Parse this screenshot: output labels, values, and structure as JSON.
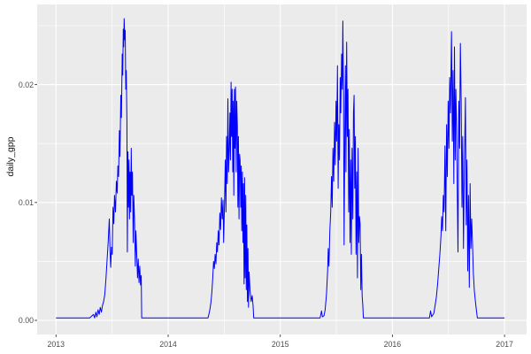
{
  "figure": {
    "kind": "ggplot-line-chart",
    "panel_bg": "#EBEBEB",
    "grid_color": "#FFFFFF",
    "tick_color": "#333333",
    "tick_label_color": "#4D4D4D",
    "axis_title_color": "#111111",
    "line_color": "#0000FF"
  },
  "chart_data": {
    "type": "line",
    "title": "",
    "xlabel": "",
    "ylabel": "daily_gpp",
    "legend": "none",
    "grid": "on",
    "x_domain": [
      2013,
      2017
    ],
    "ylim": [
      0,
      0.0268
    ],
    "x_major": [
      2013,
      2014,
      2015,
      2016,
      2017
    ],
    "x_tick_labels": [
      "2013",
      "2014",
      "2015",
      "2016",
      "2017"
    ],
    "x_minor": [
      2013.5,
      2014.5,
      2015.5,
      2016.5
    ],
    "y_major": [
      0.0,
      0.01,
      0.02
    ],
    "y_tick_labels": [
      "0.00",
      "0.01",
      "0.02"
    ],
    "y_minor": [
      0.005,
      0.015,
      0.025
    ],
    "series": [
      {
        "name": "daily_gpp",
        "color": "#0000FF",
        "points": [
          [
            2013.0,
            0.0002
          ],
          [
            2013.15,
            0.0002
          ],
          [
            2013.3,
            0.0002
          ],
          [
            2013.335,
            0.0005
          ],
          [
            2013.345,
            0.0002
          ],
          [
            2013.355,
            0.0007
          ],
          [
            2013.365,
            0.0003
          ],
          [
            2013.375,
            0.0009
          ],
          [
            2013.385,
            0.0005
          ],
          [
            2013.395,
            0.0011
          ],
          [
            2013.405,
            0.0007
          ],
          [
            2013.415,
            0.0013
          ],
          [
            2013.425,
            0.0016
          ],
          [
            2013.435,
            0.0022
          ],
          [
            2013.445,
            0.0035
          ],
          [
            2013.455,
            0.005
          ],
          [
            2013.465,
            0.0066
          ],
          [
            2013.475,
            0.0086
          ],
          [
            2013.482,
            0.0058
          ],
          [
            2013.488,
            0.0045
          ],
          [
            2013.495,
            0.0062
          ],
          [
            2013.501,
            0.0056
          ],
          [
            2013.508,
            0.0096
          ],
          [
            2013.515,
            0.0082
          ],
          [
            2013.522,
            0.0106
          ],
          [
            2013.53,
            0.0092
          ],
          [
            2013.538,
            0.0118
          ],
          [
            2013.545,
            0.0108
          ],
          [
            2013.552,
            0.0131
          ],
          [
            2013.558,
            0.0122
          ],
          [
            2013.565,
            0.0161
          ],
          [
            2013.571,
            0.0139
          ],
          [
            2013.578,
            0.0191
          ],
          [
            2013.583,
            0.0172
          ],
          [
            2013.59,
            0.0226
          ],
          [
            2013.595,
            0.0208
          ],
          [
            2013.6,
            0.0247
          ],
          [
            2013.604,
            0.0232
          ],
          [
            2013.608,
            0.0256
          ],
          [
            2013.613,
            0.0238
          ],
          [
            2013.617,
            0.0246
          ],
          [
            2013.622,
            0.0196
          ],
          [
            2013.627,
            0.0212
          ],
          [
            2013.632,
            0.0168
          ],
          [
            2013.636,
            0.0058
          ],
          [
            2013.641,
            0.0143
          ],
          [
            2013.646,
            0.0096
          ],
          [
            2013.651,
            0.0136
          ],
          [
            2013.656,
            0.0086
          ],
          [
            2013.661,
            0.0126
          ],
          [
            2013.666,
            0.0092
          ],
          [
            2013.671,
            0.0146
          ],
          [
            2013.676,
            0.0106
          ],
          [
            2013.682,
            0.0126
          ],
          [
            2013.688,
            0.0066
          ],
          [
            2013.694,
            0.0106
          ],
          [
            2013.7,
            0.0086
          ],
          [
            2013.707,
            0.0046
          ],
          [
            2013.713,
            0.0076
          ],
          [
            2013.72,
            0.0056
          ],
          [
            2013.727,
            0.0036
          ],
          [
            2013.733,
            0.0052
          ],
          [
            2013.74,
            0.0032
          ],
          [
            2013.747,
            0.0046
          ],
          [
            2013.754,
            0.003
          ],
          [
            2013.76,
            0.0038
          ],
          [
            2013.764,
            0.0002
          ],
          [
            2013.85,
            0.0002
          ],
          [
            2014.0,
            0.0002
          ],
          [
            2014.2,
            0.0002
          ],
          [
            2014.355,
            0.0002
          ],
          [
            2014.363,
            0.0005
          ],
          [
            2014.372,
            0.0009
          ],
          [
            2014.381,
            0.0015
          ],
          [
            2014.39,
            0.0024
          ],
          [
            2014.398,
            0.0036
          ],
          [
            2014.405,
            0.005
          ],
          [
            2014.412,
            0.0044
          ],
          [
            2014.419,
            0.0056
          ],
          [
            2014.426,
            0.0048
          ],
          [
            2014.433,
            0.0066
          ],
          [
            2014.44,
            0.0058
          ],
          [
            2014.447,
            0.0076
          ],
          [
            2014.454,
            0.0064
          ],
          [
            2014.461,
            0.0091
          ],
          [
            2014.468,
            0.0077
          ],
          [
            2014.475,
            0.0104
          ],
          [
            2014.482,
            0.0086
          ],
          [
            2014.489,
            0.0102
          ],
          [
            2014.495,
            0.0066
          ],
          [
            2014.502,
            0.0096
          ],
          [
            2014.509,
            0.0136
          ],
          [
            2014.515,
            0.0092
          ],
          [
            2014.521,
            0.0156
          ],
          [
            2014.527,
            0.0116
          ],
          [
            2014.533,
            0.0188
          ],
          [
            2014.539,
            0.0126
          ],
          [
            2014.545,
            0.0146
          ],
          [
            2014.551,
            0.0176
          ],
          [
            2014.556,
            0.0136
          ],
          [
            2014.561,
            0.0202
          ],
          [
            2014.566,
            0.0156
          ],
          [
            2014.571,
            0.0196
          ],
          [
            2014.576,
            0.0126
          ],
          [
            2014.581,
            0.0186
          ],
          [
            2014.586,
            0.0106
          ],
          [
            2014.591,
            0.0196
          ],
          [
            2014.596,
            0.0146
          ],
          [
            2014.601,
            0.0198
          ],
          [
            2014.607,
            0.0126
          ],
          [
            2014.612,
            0.0186
          ],
          [
            2014.617,
            0.0166
          ],
          [
            2014.622,
            0.0096
          ],
          [
            2014.627,
            0.0156
          ],
          [
            2014.632,
            0.0086
          ],
          [
            2014.637,
            0.0141
          ],
          [
            2014.642,
            0.0136
          ],
          [
            2014.647,
            0.0096
          ],
          [
            2014.652,
            0.0131
          ],
          [
            2014.657,
            0.0076
          ],
          [
            2014.662,
            0.0126
          ],
          [
            2014.667,
            0.0066
          ],
          [
            2014.672,
            0.0116
          ],
          [
            2014.677,
            0.0031
          ],
          [
            2014.682,
            0.0121
          ],
          [
            2014.687,
            0.0036
          ],
          [
            2014.692,
            0.0106
          ],
          [
            2014.697,
            0.0026
          ],
          [
            2014.702,
            0.0081
          ],
          [
            2014.707,
            0.0016
          ],
          [
            2014.712,
            0.0061
          ],
          [
            2014.717,
            0.0011
          ],
          [
            2014.722,
            0.0041
          ],
          [
            2014.73,
            0.0026
          ],
          [
            2014.74,
            0.0016
          ],
          [
            2014.75,
            0.0021
          ],
          [
            2014.758,
            0.0012
          ],
          [
            2014.763,
            0.0002
          ],
          [
            2014.85,
            0.0002
          ],
          [
            2015.0,
            0.0002
          ],
          [
            2015.2,
            0.0002
          ],
          [
            2015.355,
            0.0002
          ],
          [
            2015.368,
            0.0008
          ],
          [
            2015.376,
            0.0003
          ],
          [
            2015.39,
            0.0004
          ],
          [
            2015.4,
            0.0009
          ],
          [
            2015.412,
            0.0022
          ],
          [
            2015.422,
            0.0042
          ],
          [
            2015.428,
            0.0061
          ],
          [
            2015.434,
            0.0046
          ],
          [
            2015.442,
            0.0076
          ],
          [
            2015.45,
            0.0092
          ],
          [
            2015.457,
            0.0122
          ],
          [
            2015.463,
            0.0096
          ],
          [
            2015.47,
            0.0146
          ],
          [
            2015.477,
            0.0118
          ],
          [
            2015.484,
            0.0168
          ],
          [
            2015.49,
            0.0132
          ],
          [
            2015.497,
            0.0186
          ],
          [
            2015.503,
            0.0152
          ],
          [
            2015.51,
            0.0216
          ],
          [
            2015.516,
            0.0112
          ],
          [
            2015.522,
            0.0166
          ],
          [
            2015.528,
            0.0136
          ],
          [
            2015.534,
            0.0206
          ],
          [
            2015.54,
            0.0176
          ],
          [
            2015.547,
            0.0226
          ],
          [
            2015.553,
            0.0196
          ],
          [
            2015.558,
            0.0254
          ],
          [
            2015.564,
            0.0186
          ],
          [
            2015.569,
            0.0064
          ],
          [
            2015.575,
            0.0156
          ],
          [
            2015.581,
            0.0216
          ],
          [
            2015.586,
            0.0126
          ],
          [
            2015.592,
            0.0236
          ],
          [
            2015.598,
            0.0156
          ],
          [
            2015.604,
            0.0196
          ],
          [
            2015.61,
            0.0092
          ],
          [
            2015.616,
            0.0162
          ],
          [
            2015.622,
            0.0066
          ],
          [
            2015.628,
            0.0136
          ],
          [
            2015.634,
            0.0056
          ],
          [
            2015.64,
            0.0146
          ],
          [
            2015.647,
            0.0086
          ],
          [
            2015.653,
            0.0176
          ],
          [
            2015.658,
            0.0191
          ],
          [
            2015.664,
            0.0112
          ],
          [
            2015.67,
            0.0156
          ],
          [
            2015.676,
            0.0056
          ],
          [
            2015.682,
            0.0126
          ],
          [
            2015.688,
            0.0036
          ],
          [
            2015.694,
            0.0146
          ],
          [
            2015.7,
            0.0066
          ],
          [
            2015.706,
            0.0088
          ],
          [
            2015.712,
            0.0082
          ],
          [
            2015.718,
            0.0026
          ],
          [
            2015.724,
            0.0056
          ],
          [
            2015.73,
            0.0021
          ],
          [
            2015.736,
            0.0012
          ],
          [
            2015.741,
            0.0002
          ],
          [
            2015.85,
            0.0002
          ],
          [
            2016.0,
            0.0002
          ],
          [
            2016.2,
            0.0002
          ],
          [
            2016.33,
            0.0002
          ],
          [
            2016.34,
            0.0008
          ],
          [
            2016.35,
            0.0003
          ],
          [
            2016.369,
            0.0006
          ],
          [
            2016.38,
            0.0012
          ],
          [
            2016.392,
            0.002
          ],
          [
            2016.404,
            0.0032
          ],
          [
            2016.415,
            0.0046
          ],
          [
            2016.425,
            0.0058
          ],
          [
            2016.433,
            0.0072
          ],
          [
            2016.44,
            0.0088
          ],
          [
            2016.447,
            0.0076
          ],
          [
            2016.454,
            0.0106
          ],
          [
            2016.461,
            0.0092
          ],
          [
            2016.469,
            0.0148
          ],
          [
            2016.476,
            0.0076
          ],
          [
            2016.483,
            0.0166
          ],
          [
            2016.49,
            0.0122
          ],
          [
            2016.497,
            0.0186
          ],
          [
            2016.504,
            0.0146
          ],
          [
            2016.511,
            0.0206
          ],
          [
            2016.518,
            0.0176
          ],
          [
            2016.527,
            0.0245
          ],
          [
            2016.534,
            0.0152
          ],
          [
            2016.541,
            0.0212
          ],
          [
            2016.548,
            0.0116
          ],
          [
            2016.553,
            0.0232
          ],
          [
            2016.56,
            0.0136
          ],
          [
            2016.566,
            0.0196
          ],
          [
            2016.572,
            0.0166
          ],
          [
            2016.578,
            0.0116
          ],
          [
            2016.585,
            0.0058
          ],
          [
            2016.592,
            0.0186
          ],
          [
            2016.599,
            0.0146
          ],
          [
            2016.606,
            0.0235
          ],
          [
            2016.613,
            0.0186
          ],
          [
            2016.62,
            0.0096
          ],
          [
            2016.627,
            0.0156
          ],
          [
            2016.634,
            0.0061
          ],
          [
            2016.641,
            0.0122
          ],
          [
            2016.651,
            0.0189
          ],
          [
            2016.658,
            0.0081
          ],
          [
            2016.665,
            0.0136
          ],
          [
            2016.672,
            0.0042
          ],
          [
            2016.679,
            0.0106
          ],
          [
            2016.686,
            0.0028
          ],
          [
            2016.693,
            0.0116
          ],
          [
            2016.7,
            0.0061
          ],
          [
            2016.707,
            0.0086
          ],
          [
            2016.714,
            0.0066
          ],
          [
            2016.721,
            0.0041
          ],
          [
            2016.73,
            0.0026
          ],
          [
            2016.74,
            0.0016
          ],
          [
            2016.75,
            0.0008
          ],
          [
            2016.758,
            0.0002
          ],
          [
            2016.85,
            0.0002
          ],
          [
            2016.95,
            0.0002
          ],
          [
            2017.0,
            0.0002
          ]
        ]
      }
    ]
  }
}
